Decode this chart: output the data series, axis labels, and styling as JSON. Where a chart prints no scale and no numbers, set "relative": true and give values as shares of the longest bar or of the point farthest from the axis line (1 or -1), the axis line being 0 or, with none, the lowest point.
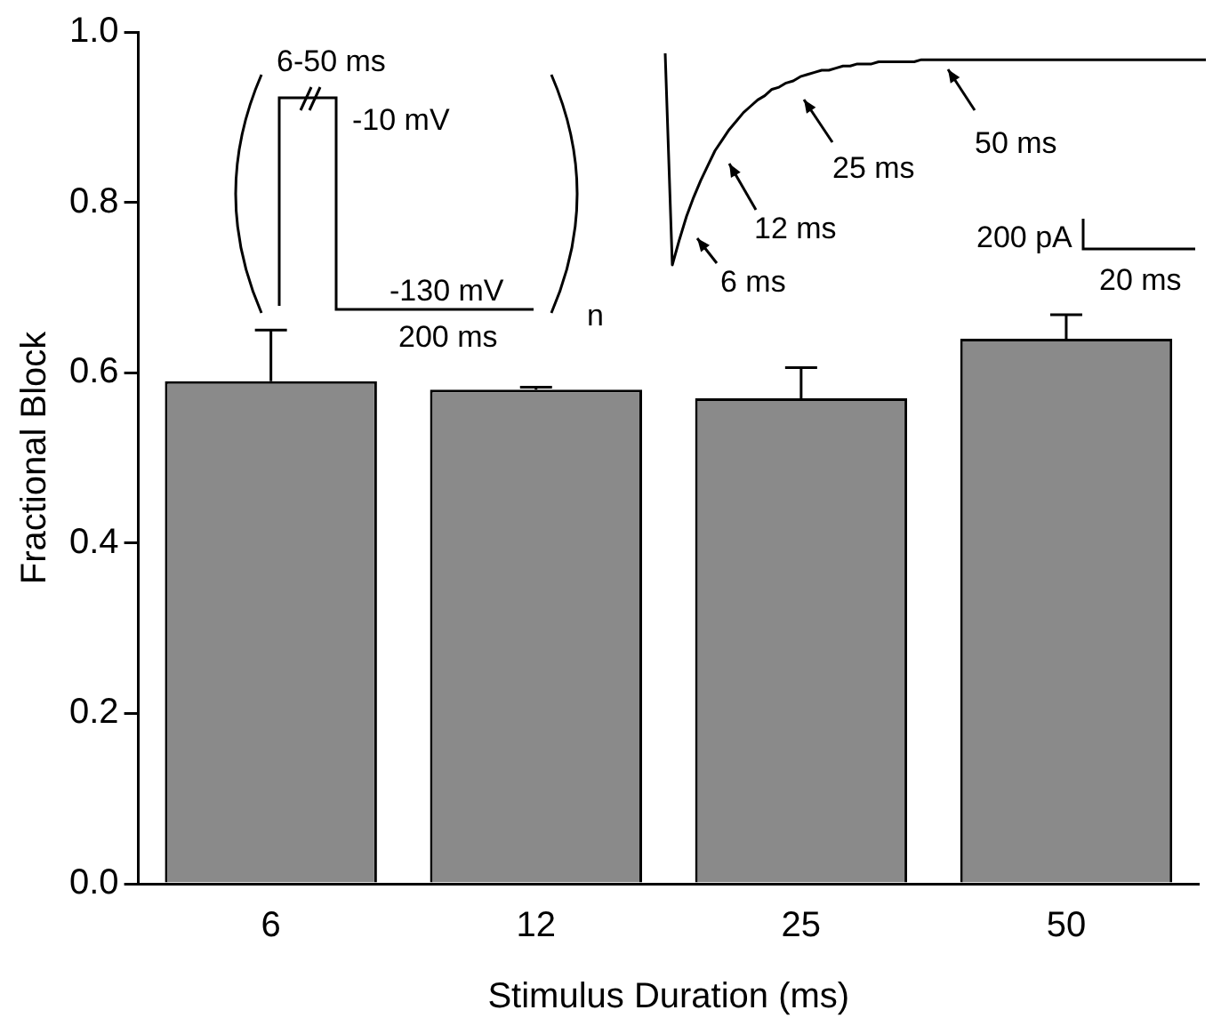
{
  "chart_data": [
    {
      "type": "bar",
      "xlabel": "Stimulus Duration (ms)",
      "ylabel": "Fractional Block",
      "categories": [
        "6",
        "12",
        "25",
        "50"
      ],
      "values": [
        0.59,
        0.58,
        0.57,
        0.64
      ],
      "errors": [
        0.06,
        0.003,
        0.036,
        0.028
      ],
      "color": "#8a8a8a",
      "ylim": [
        0,
        1.0
      ],
      "yticks": [
        {
          "value": 0,
          "label": "0.0"
        },
        {
          "value": 0.2,
          "label": "0.2"
        },
        {
          "value": 0.4,
          "label": "0.4"
        },
        {
          "value": 0.6,
          "label": "0.6"
        },
        {
          "value": 0.8,
          "label": "0.8"
        },
        {
          "value": 1.0,
          "label": "1.0"
        }
      ],
      "annotations": [
        "6-50 ms",
        "-10 mV",
        "-130 mV",
        "200 ms",
        "n"
      ]
    },
    {
      "type": "line",
      "relative": true,
      "color": "#000000",
      "categories": [
        null,
        null,
        null,
        null,
        null,
        null,
        null,
        null,
        null,
        null,
        null,
        null,
        null,
        null,
        null,
        null,
        null,
        null,
        null,
        null,
        null,
        null,
        null,
        null,
        null,
        null,
        null,
        null,
        null,
        null,
        null,
        null,
        null,
        null,
        null,
        null,
        null,
        null,
        null,
        null,
        null,
        null,
        null,
        null,
        null,
        null,
        null,
        null,
        null,
        null,
        null,
        null,
        null,
        null,
        null,
        null,
        null,
        null,
        null,
        null,
        null,
        null,
        null,
        null,
        null,
        null,
        null,
        null,
        null,
        null,
        null,
        null,
        null,
        null,
        null,
        null,
        null
      ],
      "values": [
        1.0,
        0,
        0.12,
        0.23,
        0.32,
        0.4,
        0.47,
        0.54,
        0.59,
        0.64,
        0.68,
        0.72,
        0.75,
        0.78,
        0.8,
        0.83,
        0.84,
        0.86,
        0.87,
        0.89,
        0.9,
        0.91,
        0.92,
        0.92,
        0.93,
        0.94,
        0.94,
        0.95,
        0.95,
        0.95,
        0.96,
        0.96,
        0.96,
        0.96,
        0.96,
        0.96,
        0.97,
        0.97,
        0.97,
        0.97,
        0.97,
        0.97,
        0.97,
        0.97,
        0.97,
        0.97,
        0.97,
        0.97,
        0.97,
        0.97,
        0.97,
        0.97,
        0.97,
        0.97,
        0.97,
        0.97,
        0.97,
        0.97,
        0.97,
        0.97,
        0.97,
        0.97,
        0.97,
        0.97,
        0.97,
        0.97,
        0.97,
        0.97,
        0.97,
        0.97,
        0.97,
        0.97,
        0.97,
        0.97,
        0.97,
        0.97,
        0.97
      ],
      "annotations": [
        "6 ms",
        "12 ms",
        "25 ms",
        "50 ms",
        "200 pA",
        "20 ms"
      ]
    }
  ]
}
